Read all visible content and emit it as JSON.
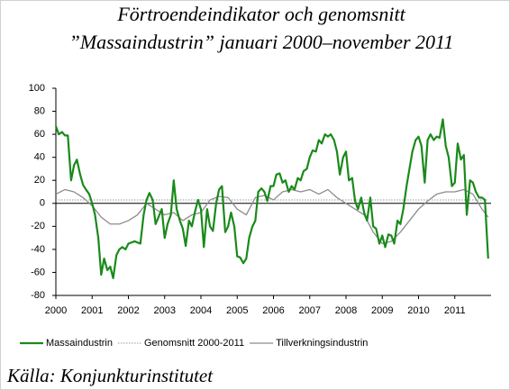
{
  "chart_data": {
    "type": "line",
    "title": "Förtroendeindikator och genomsnitt",
    "subtitle": "”Massaindustrin” januari 2000–november 2011",
    "source": "Källa: Konjunkturinstitutet",
    "xlim": [
      2000,
      2012
    ],
    "xticks": [
      2000,
      2001,
      2002,
      2003,
      2004,
      2005,
      2006,
      2007,
      2008,
      2009,
      2010,
      2011
    ],
    "ylim": [
      -80,
      100
    ],
    "yticks": [
      -80,
      -60,
      -40,
      -20,
      0,
      20,
      40,
      60,
      80,
      100
    ],
    "series": [
      {
        "name": "Massaindustrin",
        "color": "#1a8a1a",
        "style": "solid",
        "x": [
          2000.0,
          2000.08,
          2000.17,
          2000.25,
          2000.33,
          2000.42,
          2000.5,
          2000.58,
          2000.67,
          2000.75,
          2000.83,
          2000.92,
          2001.0,
          2001.08,
          2001.17,
          2001.25,
          2001.33,
          2001.42,
          2001.5,
          2001.58,
          2001.67,
          2001.75,
          2001.83,
          2001.92,
          2002.0,
          2002.17,
          2002.33,
          2002.42,
          2002.5,
          2002.58,
          2002.67,
          2002.75,
          2002.83,
          2002.92,
          2003.0,
          2003.08,
          2003.17,
          2003.25,
          2003.33,
          2003.42,
          2003.5,
          2003.58,
          2003.67,
          2003.75,
          2003.83,
          2003.92,
          2004.0,
          2004.08,
          2004.17,
          2004.25,
          2004.33,
          2004.42,
          2004.5,
          2004.58,
          2004.67,
          2004.75,
          2004.83,
          2004.92,
          2005.0,
          2005.08,
          2005.17,
          2005.25,
          2005.33,
          2005.42,
          2005.5,
          2005.58,
          2005.67,
          2005.75,
          2005.83,
          2005.92,
          2006.0,
          2006.08,
          2006.17,
          2006.25,
          2006.33,
          2006.42,
          2006.5,
          2006.58,
          2006.67,
          2006.75,
          2006.83,
          2006.92,
          2007.0,
          2007.08,
          2007.17,
          2007.25,
          2007.33,
          2007.42,
          2007.5,
          2007.58,
          2007.67,
          2007.75,
          2007.83,
          2007.92,
          2008.0,
          2008.08,
          2008.17,
          2008.25,
          2008.33,
          2008.42,
          2008.5,
          2008.58,
          2008.67,
          2008.75,
          2008.83,
          2008.92,
          2009.0,
          2009.08,
          2009.17,
          2009.25,
          2009.33,
          2009.42,
          2009.5,
          2009.58,
          2009.67,
          2009.75,
          2009.83,
          2009.92,
          2010.0,
          2010.08,
          2010.17,
          2010.25,
          2010.33,
          2010.42,
          2010.5,
          2010.58,
          2010.67,
          2010.75,
          2010.83,
          2010.92,
          2011.0,
          2011.08,
          2011.17,
          2011.25,
          2011.33,
          2011.42,
          2011.5,
          2011.58,
          2011.67,
          2011.75,
          2011.83,
          2011.92
        ],
        "values": [
          67,
          60,
          62,
          59,
          59,
          20,
          33,
          38,
          25,
          16,
          12,
          8,
          0,
          -10,
          -30,
          -62,
          -48,
          -58,
          -55,
          -65,
          -45,
          -40,
          -38,
          -40,
          -35,
          -33,
          -35,
          -10,
          3,
          9,
          3,
          -18,
          -12,
          -5,
          -30,
          -18,
          -10,
          20,
          -5,
          -15,
          -22,
          -37,
          -15,
          -20,
          -8,
          3,
          -5,
          -38,
          -5,
          -20,
          -24,
          0,
          12,
          15,
          -25,
          -20,
          -8,
          -20,
          -46,
          -47,
          -52,
          -48,
          -30,
          -20,
          -15,
          10,
          13,
          10,
          2,
          15,
          15,
          25,
          26,
          18,
          20,
          10,
          15,
          12,
          22,
          20,
          28,
          30,
          40,
          46,
          45,
          55,
          52,
          60,
          58,
          60,
          55,
          45,
          25,
          40,
          45,
          20,
          22,
          2,
          -5,
          5,
          -8,
          -15,
          5,
          -20,
          -22,
          -35,
          -28,
          -38,
          -27,
          -28,
          -35,
          -15,
          -18,
          -5,
          15,
          30,
          45,
          55,
          58,
          50,
          18,
          55,
          60,
          55,
          58,
          57,
          73,
          50,
          40,
          15,
          18,
          52,
          38,
          42,
          -10,
          20,
          18,
          10,
          5,
          5,
          3,
          -48
        ]
      },
      {
        "name": "Genomsnitt 2000-2011",
        "color": "#999999",
        "style": "dotted",
        "x": [
          2000.0,
          2011.92
        ],
        "values": [
          3,
          3
        ]
      },
      {
        "name": "Tillverkningsindustrin",
        "color": "#8c8c8c",
        "style": "solid",
        "x": [
          2000.0,
          2000.25,
          2000.5,
          2000.75,
          2001.0,
          2001.25,
          2001.5,
          2001.75,
          2002.0,
          2002.25,
          2002.5,
          2002.75,
          2003.0,
          2003.25,
          2003.5,
          2003.75,
          2004.0,
          2004.25,
          2004.5,
          2004.75,
          2005.0,
          2005.25,
          2005.5,
          2005.75,
          2006.0,
          2006.25,
          2006.5,
          2006.75,
          2007.0,
          2007.25,
          2007.5,
          2007.75,
          2008.0,
          2008.25,
          2008.5,
          2008.75,
          2009.0,
          2009.25,
          2009.5,
          2009.75,
          2010.0,
          2010.25,
          2010.5,
          2010.75,
          2011.0,
          2011.25,
          2011.5,
          2011.75,
          2011.92
        ],
        "values": [
          8,
          12,
          10,
          5,
          -2,
          -12,
          -18,
          -18,
          -15,
          -10,
          0,
          -5,
          -10,
          -8,
          -15,
          -10,
          -8,
          3,
          6,
          5,
          -5,
          -10,
          5,
          7,
          3,
          10,
          12,
          10,
          12,
          8,
          12,
          5,
          0,
          -5,
          -10,
          -25,
          -35,
          -33,
          -25,
          -15,
          -5,
          2,
          8,
          10,
          10,
          12,
          8,
          -5,
          -12
        ]
      }
    ]
  }
}
